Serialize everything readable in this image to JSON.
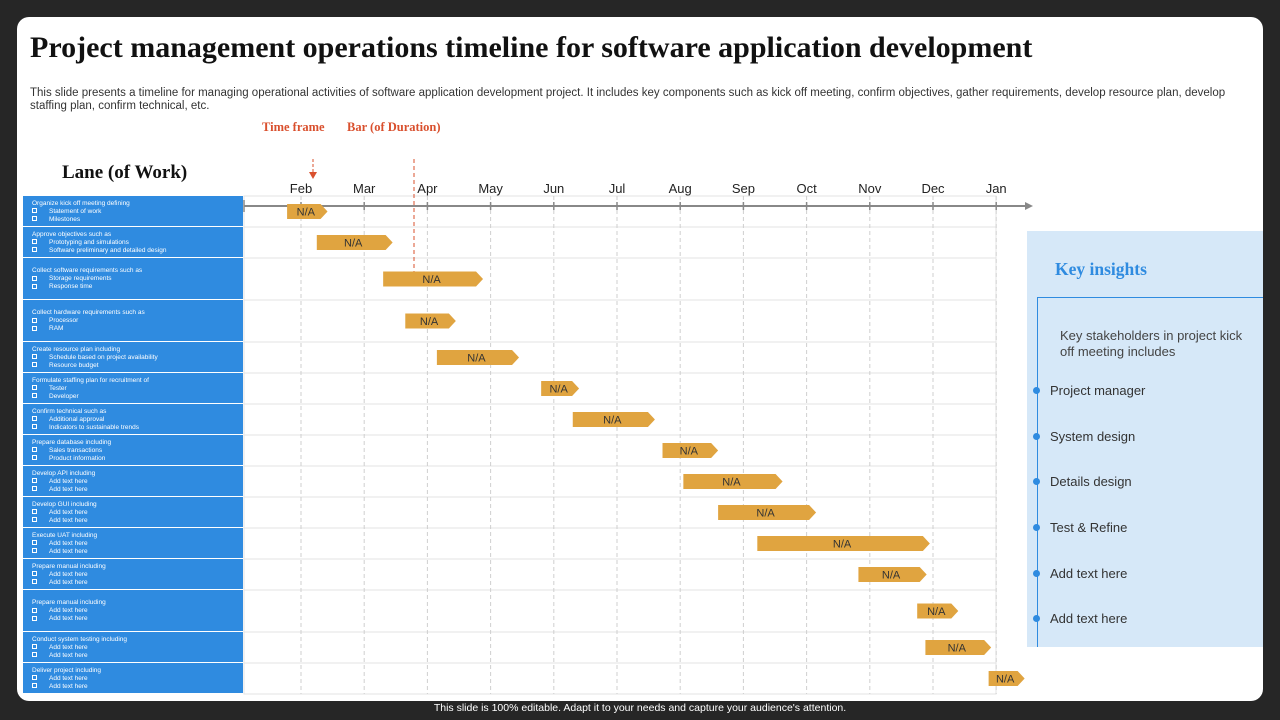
{
  "title": "Project management operations timeline for software application development",
  "subtitle": "This slide presents a timeline for managing operational activities of software application development project. It includes key components such as kick off meeting, confirm objectives, gather requirements, develop resource plan, develop staffing plan, confirm technical, etc.",
  "callouts": {
    "time_frame": "Time frame",
    "bar_duration": "Bar (of Duration)"
  },
  "lane_header": "Lane (of Work)",
  "chart_data": {
    "type": "gantt",
    "months": [
      "Feb",
      "Mar",
      "Apr",
      "May",
      "Jun",
      "Jul",
      "Aug",
      "Sep",
      "Oct",
      "Nov",
      "Dec",
      "Jan"
    ],
    "lanes": [
      {
        "title": "Organize kick off meeting defining",
        "items": [
          "Statement of work",
          "Milestones"
        ],
        "start": 0.78,
        "end": 1.42,
        "label": "N/A"
      },
      {
        "title": "Approve objectives such as",
        "items": [
          "Prototyping and simulations",
          "Software preliminary and detailed design"
        ],
        "start": 1.25,
        "end": 2.45,
        "label": "N/A"
      },
      {
        "title": "Collect software requirements such as",
        "items": [
          "Storage requirements",
          "Response time"
        ],
        "start": 2.3,
        "end": 3.88,
        "label": "N/A"
      },
      {
        "title": "Collect hardware requirements such as",
        "items": [
          "Processor",
          "RAM"
        ],
        "start": 2.65,
        "end": 3.45,
        "label": "N/A"
      },
      {
        "title": "Create resource plan including",
        "items": [
          "Schedule based on project availability",
          "Resource budget"
        ],
        "start": 3.15,
        "end": 4.45,
        "label": "N/A"
      },
      {
        "title": "Formulate staffing plan for recruitment of",
        "items": [
          "Tester",
          "Developer"
        ],
        "start": 4.8,
        "end": 5.4,
        "label": "N/A"
      },
      {
        "title": "Confirm technical such as",
        "items": [
          "Additional approval",
          "Indicators to sustainable trends"
        ],
        "start": 5.3,
        "end": 6.6,
        "label": "N/A"
      },
      {
        "title": "Prepare database including",
        "items": [
          "Sales transactions",
          "Product information"
        ],
        "start": 6.72,
        "end": 7.6,
        "label": "N/A"
      },
      {
        "title": "Develop API including",
        "items": [
          "Add text here",
          "Add text here"
        ],
        "start": 7.05,
        "end": 8.62,
        "label": "N/A"
      },
      {
        "title": "Develop GUI including",
        "items": [
          "Add text here",
          "Add text here"
        ],
        "start": 7.6,
        "end": 9.15,
        "label": "N/A"
      },
      {
        "title": "Execute UAT including",
        "items": [
          "Add text here",
          "Add text here"
        ],
        "start": 8.22,
        "end": 10.95,
        "label": "N/A"
      },
      {
        "title": "Prepare manual including",
        "items": [
          "Add text here",
          "Add text here"
        ],
        "start": 9.82,
        "end": 10.9,
        "label": "N/A"
      },
      {
        "title": "Prepare manual including",
        "items": [
          "Add text here",
          "Add text here"
        ],
        "start": 10.75,
        "end": 11.4,
        "label": "N/A"
      },
      {
        "title": "Conduct system testing including",
        "items": [
          "Add text here",
          "Add text here"
        ],
        "start": 10.88,
        "end": 11.92,
        "label": "N/A"
      },
      {
        "title": "Deliver project including",
        "items": [
          "Add text here",
          "Add text here"
        ],
        "start": 11.88,
        "end": 12.45,
        "label": "N/A"
      }
    ]
  },
  "insights": {
    "title": "Key insights",
    "intro": "Key stakeholders in project kick off meeting includes",
    "items": [
      "Project manager",
      "System design",
      "Details design",
      "Test & Refine",
      "Add text here",
      "Add text here"
    ]
  },
  "colors": {
    "accent": "#2f8be0",
    "bar": "#e0a440",
    "callout": "#d9502e",
    "panel": "#d6e8f8"
  },
  "footer": "This slide is 100% editable. Adapt it to your needs and capture your audience's attention."
}
